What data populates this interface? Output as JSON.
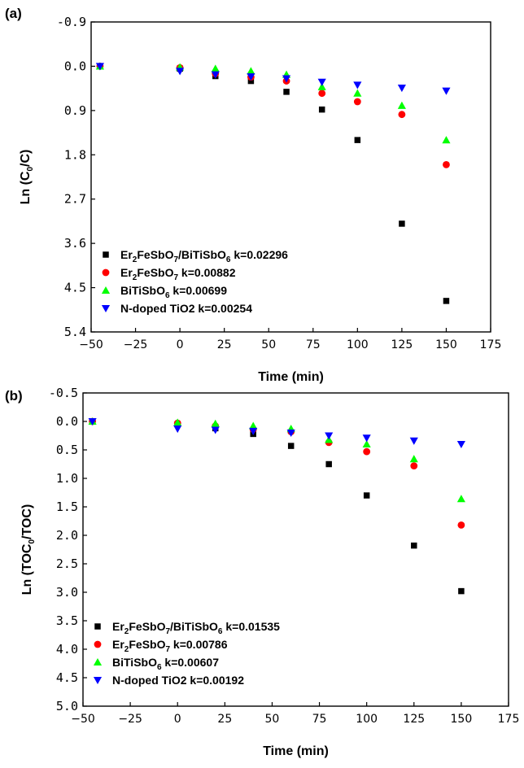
{
  "chart_data": [
    {
      "type": "scatter",
      "panel_label": "(a)",
      "xlabel": "Time (min)",
      "ylabel_parts": [
        "Ln (C",
        "0",
        "/C)"
      ],
      "xlim": [
        -50,
        175
      ],
      "ylim": [
        -0.9,
        5.4
      ],
      "y_inverted": true,
      "x_ticks": [
        -50,
        -25,
        0,
        25,
        50,
        75,
        100,
        125,
        150,
        175
      ],
      "y_ticks": [
        "-0.9",
        "0.0",
        "0.9",
        "1.8",
        "2.7",
        "3.6",
        "4.5",
        "5.4"
      ],
      "legend_position": "bottom-left",
      "series": [
        {
          "name_parts": [
            [
              "Er",
              false
            ],
            [
              "2",
              true
            ],
            [
              "FeSbO",
              false
            ],
            [
              "7",
              true
            ],
            [
              "/BiTiSbO",
              false
            ],
            [
              "6",
              true
            ],
            [
              " k=0.02296",
              false
            ]
          ],
          "marker": "square",
          "color": "#000000",
          "x": [
            -45,
            0,
            20,
            40,
            60,
            80,
            100,
            125,
            150
          ],
          "y": [
            0.0,
            0.05,
            0.2,
            0.3,
            0.52,
            0.88,
            1.5,
            3.2,
            4.77
          ]
        },
        {
          "name_parts": [
            [
              "Er",
              false
            ],
            [
              "2",
              true
            ],
            [
              "FeSbO",
              false
            ],
            [
              "7",
              true
            ],
            [
              " k=0.00882",
              false
            ]
          ],
          "marker": "circle",
          "color": "#ff0000",
          "x": [
            -45,
            0,
            20,
            40,
            60,
            80,
            100,
            125,
            150
          ],
          "y": [
            0.0,
            0.03,
            0.15,
            0.22,
            0.3,
            0.55,
            0.72,
            0.98,
            2.0
          ]
        },
        {
          "name_parts": [
            [
              "BiTiSbO",
              false
            ],
            [
              "6",
              true
            ],
            [
              " k=0.00699",
              false
            ]
          ],
          "marker": "triangle-up",
          "color": "#00ff00",
          "x": [
            -45,
            0,
            20,
            40,
            60,
            80,
            100,
            125,
            150
          ],
          "y": [
            0.0,
            0.02,
            0.05,
            0.1,
            0.17,
            0.42,
            0.55,
            0.8,
            1.5
          ]
        },
        {
          "name_parts": [
            [
              "N-doped TiO2 k=0.00254",
              false
            ]
          ],
          "marker": "triangle-down",
          "color": "#0000ff",
          "x": [
            -45,
            0,
            20,
            40,
            60,
            80,
            100,
            125,
            150
          ],
          "y": [
            0.0,
            0.1,
            0.17,
            0.21,
            0.25,
            0.32,
            0.38,
            0.44,
            0.5
          ]
        }
      ]
    },
    {
      "type": "scatter",
      "panel_label": "(b)",
      "xlabel": "Time (min)",
      "ylabel_parts": [
        "Ln (TOC",
        "0",
        "/TOC)"
      ],
      "xlim": [
        -50,
        175
      ],
      "ylim": [
        -0.5,
        5.0
      ],
      "y_inverted": true,
      "x_ticks": [
        -50,
        -25,
        0,
        25,
        50,
        75,
        100,
        125,
        150,
        175
      ],
      "y_ticks": [
        "-0.5",
        "0.0",
        "0.5",
        "1.0",
        "1.5",
        "2.0",
        "2.5",
        "3.0",
        "3.5",
        "4.0",
        "4.5",
        "5.0"
      ],
      "legend_position": "bottom-left",
      "series": [
        {
          "name_parts": [
            [
              "Er",
              false
            ],
            [
              "2",
              true
            ],
            [
              "FeSbO",
              false
            ],
            [
              "7",
              true
            ],
            [
              "/BiTiSbO",
              false
            ],
            [
              "6",
              true
            ],
            [
              " k=0.01535",
              false
            ]
          ],
          "marker": "square",
          "color": "#000000",
          "x": [
            -45,
            0,
            20,
            40,
            60,
            80,
            100,
            125,
            150
          ],
          "y": [
            0.0,
            0.05,
            0.12,
            0.22,
            0.43,
            0.75,
            1.3,
            2.18,
            2.98
          ]
        },
        {
          "name_parts": [
            [
              "Er",
              false
            ],
            [
              "2",
              true
            ],
            [
              "FeSbO",
              false
            ],
            [
              "7",
              true
            ],
            [
              " k=0.00786",
              false
            ]
          ],
          "marker": "circle",
          "color": "#ff0000",
          "x": [
            -45,
            0,
            20,
            40,
            60,
            80,
            100,
            125,
            150
          ],
          "y": [
            0.0,
            0.03,
            0.08,
            0.14,
            0.18,
            0.37,
            0.53,
            0.78,
            1.82
          ]
        },
        {
          "name_parts": [
            [
              "BiTiSbO",
              false
            ],
            [
              "6",
              true
            ],
            [
              " k=0.00607",
              false
            ]
          ],
          "marker": "triangle-up",
          "color": "#00ff00",
          "x": [
            -45,
            0,
            20,
            40,
            60,
            80,
            100,
            125,
            150
          ],
          "y": [
            0.0,
            0.02,
            0.04,
            0.08,
            0.13,
            0.32,
            0.4,
            0.66,
            1.36
          ]
        },
        {
          "name_parts": [
            [
              "N-doped TiO2 k=0.00192",
              false
            ]
          ],
          "marker": "triangle-down",
          "color": "#0000ff",
          "x": [
            -45,
            0,
            20,
            40,
            60,
            80,
            100,
            125,
            150
          ],
          "y": [
            0.0,
            0.13,
            0.15,
            0.17,
            0.2,
            0.25,
            0.29,
            0.34,
            0.4
          ]
        }
      ]
    }
  ]
}
